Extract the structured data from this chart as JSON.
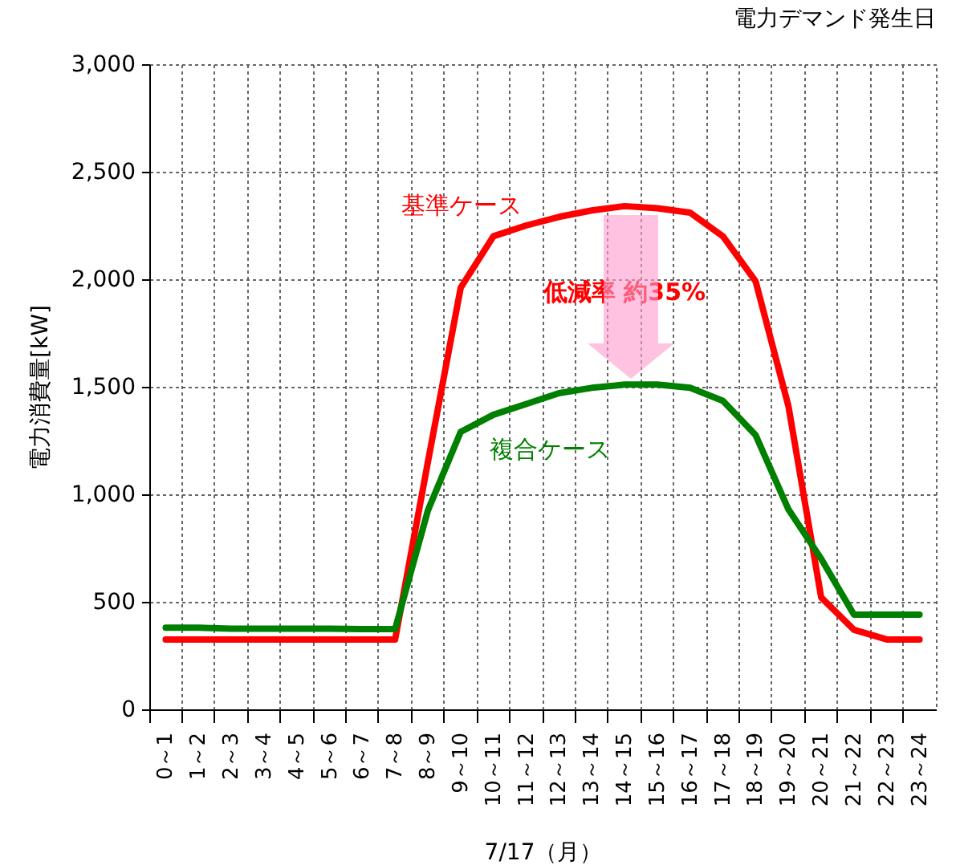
{
  "chart_data": {
    "type": "line",
    "title": "電力デマンド発生日",
    "xlabel": "7/17（月）",
    "ylabel": "電力消費量[kW]",
    "categories": [
      "0～1",
      "1～2",
      "2～3",
      "3～4",
      "4～5",
      "5～6",
      "6～7",
      "7～8",
      "8～9",
      "9～10",
      "10～11",
      "11～12",
      "12～13",
      "13～14",
      "14～15",
      "15～16",
      "16～17",
      "17～18",
      "18～19",
      "19～20",
      "20～21",
      "21～22",
      "22～23",
      "23～24"
    ],
    "series": [
      {
        "name": "基準ケース",
        "color": "#ff0000",
        "values": [
          325,
          325,
          325,
          325,
          325,
          325,
          325,
          325,
          1150,
          1960,
          2200,
          2250,
          2290,
          2320,
          2340,
          2330,
          2310,
          2200,
          1990,
          1410,
          520,
          370,
          325,
          325
        ]
      },
      {
        "name": "複合ケース",
        "color": "#008000",
        "values": [
          380,
          380,
          375,
          375,
          375,
          375,
          373,
          373,
          925,
          1290,
          1370,
          1420,
          1470,
          1495,
          1510,
          1510,
          1495,
          1435,
          1275,
          930,
          700,
          440,
          440,
          440
        ]
      }
    ],
    "ylim": [
      0,
      3000
    ],
    "yticks": [
      0,
      500,
      {
        "value": 1000,
        "label": "1,000"
      },
      {
        "value": 1500,
        "label": "1,500"
      },
      {
        "value": 2000,
        "label": "2,000"
      },
      {
        "value": 2500,
        "label": "2,500"
      },
      {
        "value": 3000,
        "label": "3,000"
      }
    ],
    "grid": true,
    "legend": false,
    "marker": "none",
    "line_style": "solid",
    "annotations": [
      "低減率 約35%"
    ]
  }
}
